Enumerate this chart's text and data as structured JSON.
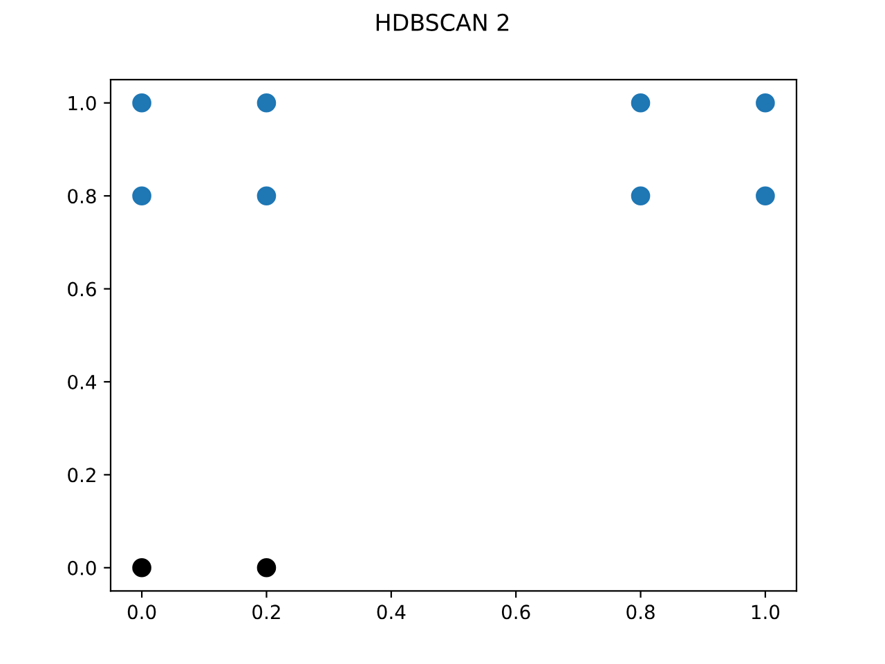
{
  "chart_data": {
    "type": "scatter",
    "title": "HDBSCAN 2",
    "series": [
      {
        "color": "#1f77b4",
        "x": [
          0,
          0.2,
          0.8,
          1,
          0,
          0.2,
          0.8,
          1
        ],
        "values": [
          1,
          1,
          1,
          1,
          0.8,
          0.8,
          0.8,
          0.8
        ]
      },
      {
        "color": "#000000",
        "x": [
          0,
          0.2
        ],
        "values": [
          0,
          0
        ]
      }
    ],
    "xlim": [
      -0.05,
      1.05
    ],
    "ylim": [
      -0.05,
      1.05
    ],
    "xticks": [
      {
        "value": 0,
        "label": "0.0"
      },
      {
        "value": 0.2,
        "label": "0.2"
      },
      {
        "value": 0.4,
        "label": "0.4"
      },
      {
        "value": 0.6,
        "label": "0.6"
      },
      {
        "value": 0.8,
        "label": "0.8"
      },
      {
        "value": 1,
        "label": "1.0"
      }
    ],
    "yticks": [
      {
        "value": 0,
        "label": "0.0"
      },
      {
        "value": 0.2,
        "label": "0.2"
      },
      {
        "value": 0.4,
        "label": "0.4"
      },
      {
        "value": 0.6,
        "label": "0.6"
      },
      {
        "value": 0.8,
        "label": "0.8"
      },
      {
        "value": 1,
        "label": "1.0"
      }
    ],
    "marker": "circle",
    "grid": false,
    "legend": false
  }
}
